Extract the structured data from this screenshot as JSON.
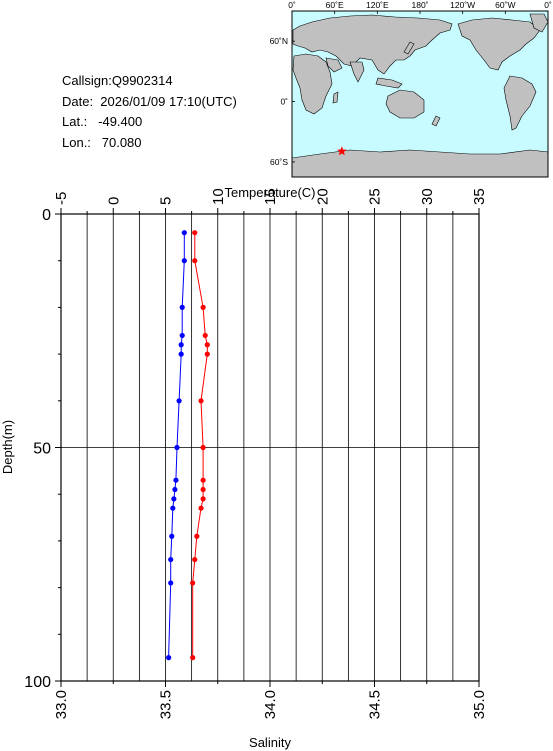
{
  "header": {
    "callsign": "Callsign:Q9902314",
    "date": "Date:  2026/01/09 17:10(UTC)",
    "lat": "Lat.:   -49.400",
    "lon": "Lon.:   70.080"
  },
  "map": {
    "lon_labels": [
      "0˚",
      "60˚E",
      "120˚E",
      "180˚",
      "120˚W",
      "60˚W",
      "0˚"
    ],
    "lat_labels": [
      "60˚N",
      "0˚",
      "60˚S"
    ],
    "marker": {
      "lat": -49.4,
      "lon": 70.08
    },
    "colors": {
      "ocean": "#c8fbff",
      "land": "#c0c0c0",
      "marker": "#ff0000"
    }
  },
  "chart_data": {
    "type": "line",
    "ylabel": "Depth(m)",
    "ylim": [
      100,
      0
    ],
    "y_ticks": [
      "0",
      "50",
      "100"
    ],
    "temperature_axis": {
      "label": "Temperature(C)",
      "lim": [
        -5,
        35
      ],
      "ticks": [
        "-5",
        "0",
        "5",
        "10",
        "15",
        "20",
        "25",
        "30",
        "35"
      ]
    },
    "salinity_axis": {
      "label": "Salinity",
      "lim": [
        33.0,
        35.0
      ],
      "ticks": [
        "33.0",
        "33.5",
        "34.0",
        "34.5",
        "35.0"
      ]
    },
    "grid": true,
    "series": [
      {
        "color": "#0000ff",
        "axis": "temperature",
        "depth": [
          4,
          10,
          20,
          26,
          28,
          30,
          40,
          50,
          57,
          59,
          61,
          63,
          69,
          74,
          79,
          95
        ],
        "values": [
          6.8,
          6.8,
          6.6,
          6.6,
          6.5,
          6.5,
          6.3,
          6.1,
          6.0,
          5.9,
          5.8,
          5.7,
          5.6,
          5.5,
          5.5,
          5.3
        ]
      },
      {
        "color": "#ff0000",
        "axis": "salinity",
        "depth": [
          4,
          10,
          20,
          26,
          28,
          30,
          40,
          50,
          57,
          59,
          61,
          63,
          69,
          74,
          79,
          95
        ],
        "values": [
          33.64,
          33.64,
          33.68,
          33.69,
          33.7,
          33.7,
          33.67,
          33.68,
          33.68,
          33.68,
          33.68,
          33.67,
          33.65,
          33.64,
          33.63,
          33.63
        ]
      }
    ]
  }
}
